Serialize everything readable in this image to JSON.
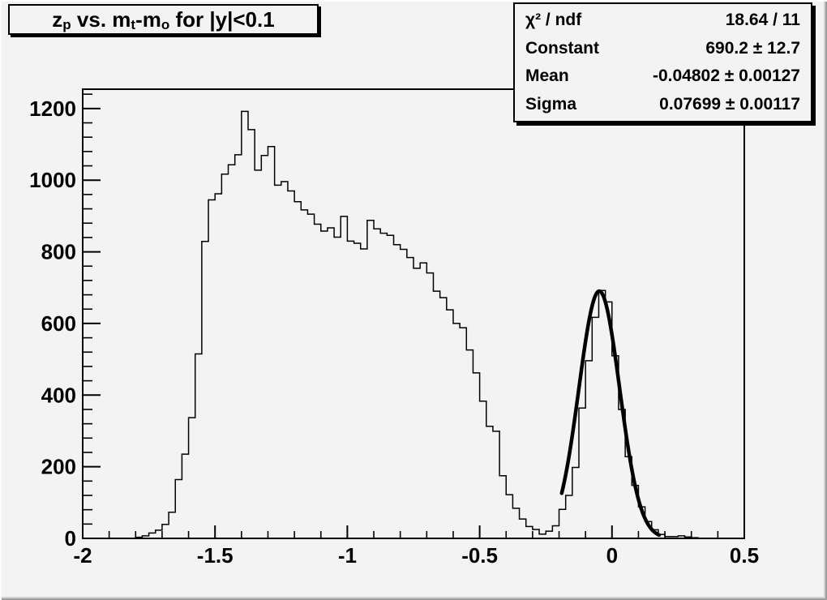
{
  "canvas": {
    "background": "#f3f3f3",
    "frame_color": "#000000",
    "bevel_light": "#fdfdfd",
    "bevel_dark": "#9e9e9e"
  },
  "title_box": {
    "z": "z",
    "z_sub": "p",
    "vs": " vs. m",
    "t_sub": "t",
    "minus_m": "-m",
    "o_sub": "o",
    "rest": " for |y|<0.1"
  },
  "stats_box": {
    "rows": [
      {
        "label": "χ² / ndf",
        "value": "18.64 / 11"
      },
      {
        "label": "Constant",
        "value": "690.2 ± 12.7"
      },
      {
        "label": "Mean",
        "value": "-0.04802 ± 0.00127"
      },
      {
        "label": "Sigma",
        "value": "0.07699 ± 0.00117"
      }
    ]
  },
  "chart_data": {
    "type": "bar",
    "subtype": "step-histogram",
    "title": "z_p vs. m_t-m_o for |y|<0.1",
    "xlabel": "",
    "ylabel": "",
    "xlim": [
      -2,
      0.5
    ],
    "ylim": [
      0,
      1254
    ],
    "grid": false,
    "legend": false,
    "x_start": -2,
    "bin_width": 0.025,
    "bins": [
      0,
      0,
      0,
      0,
      0,
      0,
      0,
      0,
      3,
      7,
      15,
      23,
      39,
      73,
      164,
      235,
      337,
      515,
      829,
      945,
      962,
      1017,
      1043,
      1071,
      1192,
      1141,
      1028,
      1069,
      1094,
      986,
      996,
      970,
      940,
      917,
      905,
      877,
      858,
      867,
      841,
      899,
      830,
      824,
      808,
      888,
      864,
      852,
      846,
      820,
      807,
      784,
      754,
      769,
      741,
      690,
      672,
      638,
      600,
      588,
      526,
      462,
      383,
      313,
      299,
      175,
      122,
      84,
      54,
      33,
      25,
      12,
      20,
      35,
      81,
      120,
      198,
      364,
      496,
      617,
      692,
      660,
      510,
      360,
      228,
      148,
      88,
      47,
      24,
      11,
      5,
      5,
      7,
      4,
      2,
      0,
      0,
      0,
      0,
      0,
      0,
      0
    ],
    "x_ticks": {
      "major": [
        -2,
        -1.5,
        -1,
        -0.5,
        0,
        0.5
      ],
      "labels": [
        "-2",
        "-1.5",
        "-1",
        "-0.5",
        "0",
        "0.5"
      ],
      "minor_step": 0.1
    },
    "y_ticks": {
      "major": [
        0,
        200,
        400,
        600,
        800,
        1000,
        1200
      ],
      "labels": [
        "0",
        "200",
        "400",
        "600",
        "800",
        "1000",
        "1200"
      ],
      "minor_step": 40
    },
    "fit_curve": {
      "type": "gaussian",
      "constant": 690.2,
      "mean": -0.04802,
      "sigma": 0.07699,
      "range": [
        -0.19,
        0.18
      ],
      "color": "#000000",
      "line_width": 4.5
    },
    "hist_color": "#000000",
    "hist_line_width": 1.5
  }
}
